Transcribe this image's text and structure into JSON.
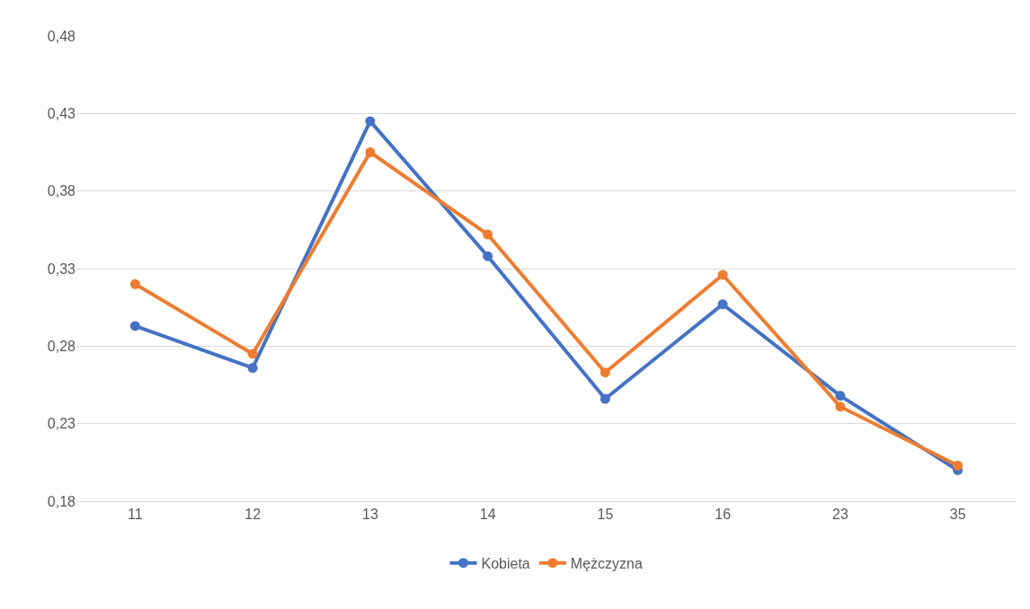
{
  "chart_data": {
    "type": "line",
    "categories": [
      "11",
      "12",
      "13",
      "14",
      "15",
      "16",
      "23",
      "35"
    ],
    "series": [
      {
        "name": "Kobieta",
        "color": "#4472c4",
        "values": [
          0.293,
          0.266,
          0.425,
          0.338,
          0.246,
          0.307,
          0.248,
          0.2
        ]
      },
      {
        "name": "Mężczyzna",
        "color": "#ed7d31",
        "values": [
          0.32,
          0.275,
          0.405,
          0.352,
          0.263,
          0.326,
          0.241,
          0.203
        ]
      }
    ],
    "ylim": [
      0.18,
      0.48
    ],
    "yticks": [
      {
        "value": 0.18,
        "label": "0,18"
      },
      {
        "value": 0.23,
        "label": "0,23"
      },
      {
        "value": 0.28,
        "label": "0,28"
      },
      {
        "value": 0.33,
        "label": "0,33"
      },
      {
        "value": 0.38,
        "label": "0,38"
      },
      {
        "value": 0.43,
        "label": "0,43"
      },
      {
        "value": 0.48,
        "label": "0,48"
      }
    ],
    "grid": "y",
    "legend": "bottom",
    "marker": "circle",
    "line_style": "solid"
  }
}
